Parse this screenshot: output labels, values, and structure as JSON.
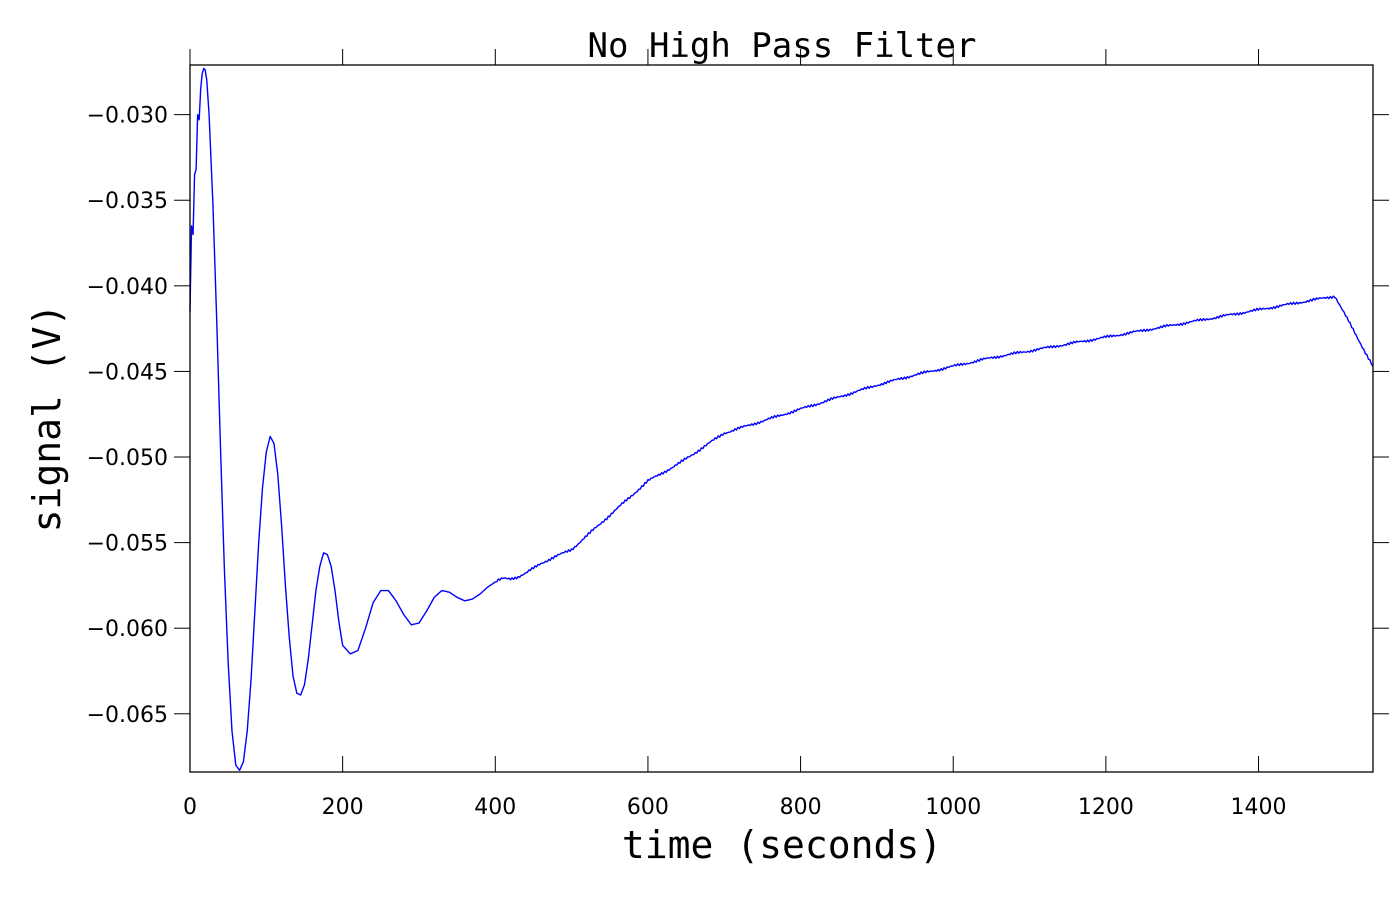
{
  "chart_data": {
    "type": "line",
    "title": "No High Pass Filter",
    "xlabel": "time (seconds)",
    "ylabel": "signal (V)",
    "xlim": [
      0,
      1550
    ],
    "ylim": [
      -0.0684,
      -0.0271
    ],
    "xticks": [
      0,
      200,
      400,
      600,
      800,
      1000,
      1200,
      1400
    ],
    "xtick_labels": [
      "0",
      "200",
      "400",
      "600",
      "800",
      "1000",
      "1200",
      "1400"
    ],
    "yticks": [
      -0.03,
      -0.035,
      -0.04,
      -0.045,
      -0.05,
      -0.055,
      -0.06,
      -0.065
    ],
    "ytick_labels": [
      "−0.030",
      "−0.035",
      "−0.040",
      "−0.045",
      "−0.050",
      "−0.055",
      "−0.060",
      "−0.065"
    ],
    "grid": false,
    "series": [
      {
        "color": "#0000ff",
        "x": [
          0,
          2,
          4,
          6,
          8,
          10,
          12,
          14,
          16,
          18,
          20,
          22,
          25,
          30,
          35,
          40,
          45,
          50,
          55,
          60,
          65,
          70,
          75,
          80,
          85,
          90,
          95,
          100,
          105,
          110,
          115,
          120,
          125,
          130,
          135,
          140,
          145,
          150,
          155,
          160,
          165,
          170,
          175,
          180,
          185,
          190,
          195,
          200,
          210,
          220,
          230,
          240,
          250,
          260,
          270,
          280,
          290,
          300,
          310,
          320,
          330,
          340,
          350,
          360,
          370,
          380,
          390,
          400,
          410,
          420,
          430,
          440,
          450,
          460,
          470,
          480,
          490,
          500,
          510,
          520,
          530,
          540,
          550,
          560,
          570,
          580,
          590,
          600,
          620,
          640,
          660,
          680,
          700,
          750,
          800,
          850,
          900,
          950,
          1000,
          1050,
          1100,
          1150,
          1200,
          1250,
          1300,
          1350,
          1400,
          1450,
          1500,
          1550
        ],
        "y": [
          -0.0415,
          -0.0365,
          -0.037,
          -0.0335,
          -0.0332,
          -0.03,
          -0.0303,
          -0.0285,
          -0.0276,
          -0.0273,
          -0.0274,
          -0.028,
          -0.03,
          -0.0352,
          -0.042,
          -0.0495,
          -0.0565,
          -0.062,
          -0.066,
          -0.068,
          -0.0683,
          -0.0678,
          -0.066,
          -0.063,
          -0.059,
          -0.055,
          -0.0518,
          -0.0497,
          -0.0488,
          -0.0492,
          -0.051,
          -0.054,
          -0.0575,
          -0.0605,
          -0.0628,
          -0.0638,
          -0.0639,
          -0.0633,
          -0.0618,
          -0.0598,
          -0.0578,
          -0.0564,
          -0.0556,
          -0.0557,
          -0.0564,
          -0.0578,
          -0.0596,
          -0.061,
          -0.0615,
          -0.0613,
          -0.06,
          -0.0585,
          -0.0578,
          -0.0578,
          -0.0584,
          -0.0592,
          -0.0598,
          -0.0597,
          -0.059,
          -0.0582,
          -0.0578,
          -0.0579,
          -0.0582,
          -0.0584,
          -0.0583,
          -0.058,
          -0.0576,
          -0.0573,
          -0.0571,
          -0.0571,
          -0.057,
          -0.0568,
          -0.0565,
          -0.0562,
          -0.056,
          -0.0558,
          -0.0556,
          -0.0554,
          -0.055,
          -0.0546,
          -0.0542,
          -0.0538,
          -0.0534,
          -0.053,
          -0.0526,
          -0.0522,
          -0.0518,
          -0.0514,
          -0.0509,
          -0.0504,
          -0.0498,
          -0.0492,
          -0.0486,
          -0.0479,
          -0.0472,
          -0.0465,
          -0.0458,
          -0.0452,
          -0.0447,
          -0.0442,
          -0.0438,
          -0.0434,
          -0.043,
          -0.0426,
          -0.0422,
          -0.0418,
          -0.0414,
          -0.041,
          -0.0406,
          -0.0447
        ]
      }
    ]
  }
}
